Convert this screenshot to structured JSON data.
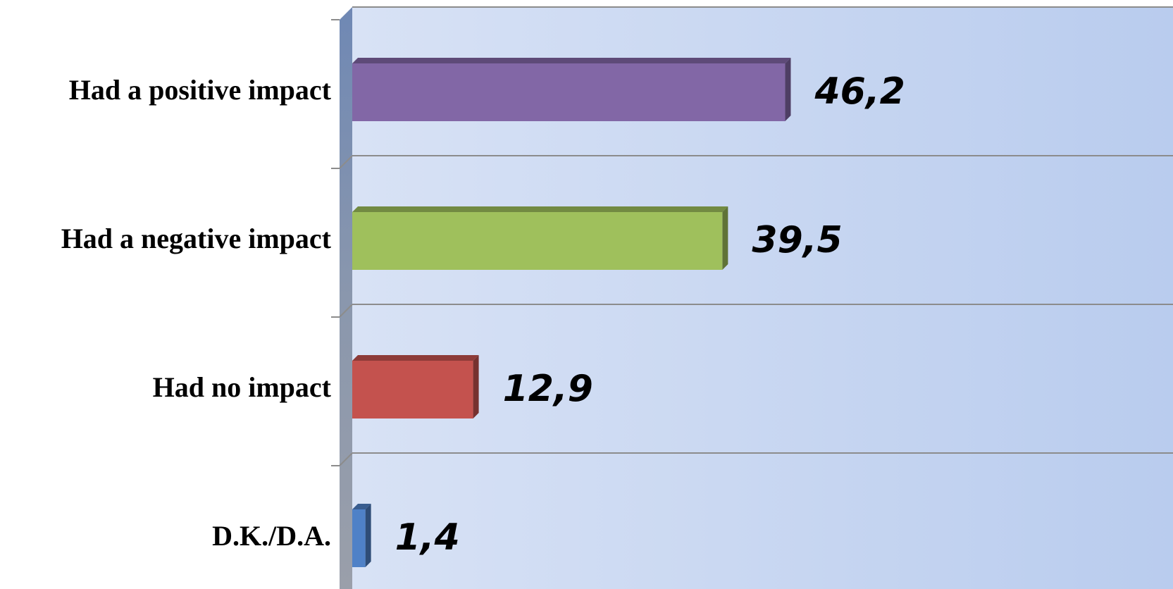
{
  "chart_data": {
    "type": "bar",
    "orientation": "horizontal",
    "style": "3d",
    "categories": [
      "Had a positive impact",
      "Had a negative impact",
      "Had no impact",
      "D.K./D.A."
    ],
    "values": [
      46.2,
      39.5,
      12.9,
      1.4
    ],
    "value_labels": [
      "46,2",
      "39,5",
      "12,9",
      "1,4"
    ],
    "colors": [
      "#8267A6",
      "#9FC05C",
      "#C4524E",
      "#4F81C7"
    ],
    "xlim": [
      0,
      100
    ],
    "grid": true,
    "legend": "none",
    "title": "",
    "xlabel": "",
    "ylabel": ""
  }
}
